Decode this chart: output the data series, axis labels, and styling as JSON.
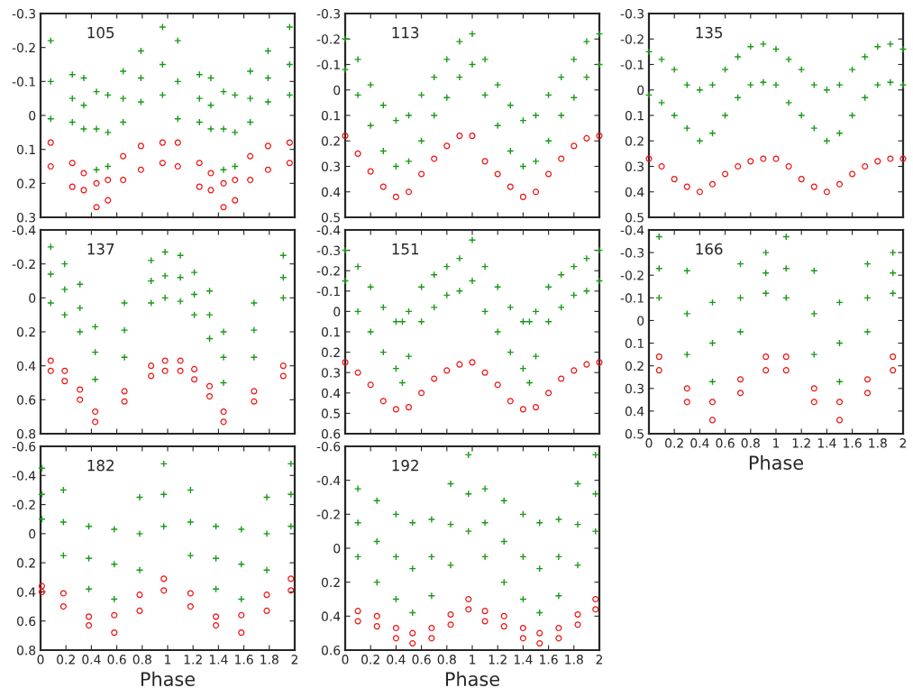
{
  "chart_data": [
    {
      "type": "scatter",
      "title": "105",
      "ylim": [
        0.3,
        -0.3
      ],
      "yticks": [
        -0.3,
        -0.2,
        -0.1,
        0,
        0.1,
        0.2,
        0.3
      ],
      "xlim": [
        0,
        2
      ],
      "xticks": [
        0,
        0.2,
        0.4,
        0.6,
        0.8,
        1,
        1.2,
        1.4,
        1.6,
        1.8,
        2
      ],
      "tick_labels": "y",
      "series": [
        {
          "color": "#1a9a1a",
          "marker": "cross",
          "x": [
            0.08,
            0.08,
            0.08,
            0.25,
            0.25,
            0.25,
            0.34,
            0.34,
            0.34,
            0.44,
            0.44,
            0.44,
            0.53,
            0.53,
            0.53,
            0.65,
            0.65,
            0.65,
            0.79,
            0.79,
            0.79,
            0.96,
            0.96,
            0.96,
            1.08,
            1.08,
            1.08,
            1.25,
            1.25,
            1.25,
            1.34,
            1.34,
            1.34,
            1.44,
            1.44,
            1.44,
            1.53,
            1.53,
            1.53,
            1.65,
            1.65,
            1.65,
            1.79,
            1.79,
            1.79,
            1.96,
            1.96,
            1.96
          ],
          "values": [
            -0.22,
            -0.1,
            0.01,
            -0.12,
            -0.05,
            0.02,
            -0.11,
            -0.03,
            0.04,
            -0.07,
            0.04,
            0.16,
            -0.06,
            0.05,
            0.15,
            -0.13,
            -0.05,
            0.02,
            -0.19,
            -0.11,
            -0.04,
            -0.26,
            -0.15,
            -0.06,
            -0.22,
            -0.1,
            0.01,
            -0.12,
            -0.05,
            0.02,
            -0.11,
            -0.03,
            0.04,
            -0.07,
            0.04,
            0.16,
            -0.06,
            0.05,
            0.15,
            -0.13,
            -0.05,
            0.02,
            -0.19,
            -0.11,
            -0.04,
            -0.26,
            -0.15,
            -0.06
          ]
        },
        {
          "color": "#ee1111",
          "marker": "circle",
          "x": [
            0.08,
            0.08,
            0.25,
            0.25,
            0.34,
            0.34,
            0.44,
            0.44,
            0.53,
            0.53,
            0.65,
            0.65,
            0.79,
            0.79,
            0.96,
            0.96,
            1.08,
            1.08,
            1.25,
            1.25,
            1.34,
            1.34,
            1.44,
            1.44,
            1.53,
            1.53,
            1.65,
            1.65,
            1.79,
            1.79,
            1.96,
            1.96
          ],
          "values": [
            0.08,
            0.15,
            0.14,
            0.21,
            0.17,
            0.22,
            0.2,
            0.27,
            0.19,
            0.25,
            0.12,
            0.19,
            0.09,
            0.16,
            0.08,
            0.14,
            0.08,
            0.15,
            0.14,
            0.21,
            0.17,
            0.22,
            0.2,
            0.27,
            0.19,
            0.25,
            0.12,
            0.19,
            0.09,
            0.16,
            0.08,
            0.14
          ]
        }
      ]
    },
    {
      "type": "scatter",
      "title": "113",
      "ylim": [
        0.5,
        -0.3
      ],
      "yticks": [
        -0.3,
        -0.2,
        -0.1,
        0,
        0.1,
        0.2,
        0.3,
        0.4,
        0.5
      ],
      "xlim": [
        0,
        2
      ],
      "xticks": [
        0,
        0.2,
        0.4,
        0.6,
        0.8,
        1,
        1.2,
        1.4,
        1.6,
        1.8,
        2
      ],
      "tick_labels": "y",
      "series": [
        {
          "color": "#1a9a1a",
          "marker": "cross",
          "x": [
            0,
            0,
            0.1,
            0.1,
            0.2,
            0.2,
            0.3,
            0.3,
            0.4,
            0.4,
            0.5,
            0.5,
            0.6,
            0.6,
            0.7,
            0.7,
            0.8,
            0.8,
            0.9,
            0.9,
            1,
            1,
            1.1,
            1.1,
            1.2,
            1.2,
            1.3,
            1.3,
            1.4,
            1.4,
            1.5,
            1.5,
            1.6,
            1.6,
            1.7,
            1.7,
            1.8,
            1.8,
            1.9,
            1.9,
            2,
            2
          ],
          "values": [
            -0.2,
            -0.08,
            -0.12,
            0.02,
            -0.02,
            0.14,
            0.06,
            0.24,
            0.12,
            0.3,
            0.1,
            0.28,
            0.02,
            0.2,
            -0.05,
            0.1,
            -0.12,
            0.03,
            -0.19,
            -0.05,
            -0.22,
            -0.1,
            -0.12,
            0.02,
            -0.02,
            0.14,
            0.06,
            0.24,
            0.12,
            0.3,
            0.1,
            0.28,
            0.02,
            0.2,
            -0.05,
            0.1,
            -0.12,
            0.03,
            -0.19,
            -0.05,
            -0.22,
            -0.1
          ]
        },
        {
          "color": "#ee1111",
          "marker": "circle",
          "x": [
            0,
            0.1,
            0.2,
            0.3,
            0.4,
            0.5,
            0.6,
            0.7,
            0.8,
            0.9,
            1,
            1.1,
            1.2,
            1.3,
            1.4,
            1.5,
            1.6,
            1.7,
            1.8,
            1.9,
            2
          ],
          "values": [
            0.18,
            0.25,
            0.32,
            0.38,
            0.42,
            0.4,
            0.33,
            0.27,
            0.22,
            0.18,
            0.18,
            0.28,
            0.33,
            0.38,
            0.42,
            0.4,
            0.33,
            0.27,
            0.22,
            0.19,
            0.18
          ]
        }
      ]
    },
    {
      "type": "scatter",
      "title": "135",
      "ylim": [
        0.5,
        -0.3
      ],
      "yticks": [
        -0.3,
        -0.2,
        -0.1,
        0,
        0.1,
        0.2,
        0.3,
        0.4,
        0.5
      ],
      "xlim": [
        0,
        2
      ],
      "xticks": [
        0,
        0.2,
        0.4,
        0.6,
        0.8,
        1,
        1.2,
        1.4,
        1.6,
        1.8,
        2
      ],
      "tick_labels": "y",
      "series": [
        {
          "color": "#1a9a1a",
          "marker": "cross",
          "x": [
            0,
            0,
            0.1,
            0.1,
            0.2,
            0.2,
            0.3,
            0.3,
            0.4,
            0.4,
            0.5,
            0.5,
            0.6,
            0.6,
            0.7,
            0.7,
            0.8,
            0.8,
            0.9,
            0.9,
            1,
            1,
            1.1,
            1.1,
            1.2,
            1.2,
            1.3,
            1.3,
            1.4,
            1.4,
            1.5,
            1.5,
            1.6,
            1.6,
            1.7,
            1.7,
            1.8,
            1.8,
            1.9,
            1.9,
            2,
            2
          ],
          "values": [
            -0.15,
            0.02,
            -0.12,
            0.05,
            -0.08,
            0.1,
            -0.02,
            0.15,
            0,
            0.2,
            -0.02,
            0.17,
            -0.08,
            0.1,
            -0.13,
            0.03,
            -0.17,
            -0.02,
            -0.18,
            -0.03,
            -0.16,
            -0.02,
            -0.12,
            0.05,
            -0.08,
            0.1,
            -0.02,
            0.15,
            0,
            0.2,
            -0.02,
            0.17,
            -0.08,
            0.1,
            -0.13,
            0.03,
            -0.17,
            -0.02,
            -0.18,
            -0.03,
            -0.16,
            -0.02
          ]
        },
        {
          "color": "#ee1111",
          "marker": "circle",
          "x": [
            0,
            0.1,
            0.2,
            0.3,
            0.4,
            0.5,
            0.6,
            0.7,
            0.8,
            0.9,
            1,
            1.1,
            1.2,
            1.3,
            1.4,
            1.5,
            1.6,
            1.7,
            1.8,
            1.9,
            2
          ],
          "values": [
            0.27,
            0.3,
            0.35,
            0.38,
            0.4,
            0.37,
            0.33,
            0.3,
            0.28,
            0.27,
            0.27,
            0.3,
            0.35,
            0.38,
            0.4,
            0.37,
            0.33,
            0.3,
            0.28,
            0.27,
            0.27
          ]
        }
      ]
    },
    {
      "type": "scatter",
      "title": "137",
      "ylim": [
        0.8,
        -0.4
      ],
      "yticks": [
        -0.4,
        -0.2,
        0,
        0.2,
        0.4,
        0.6,
        0.8
      ],
      "xlim": [
        0,
        2
      ],
      "xticks": [
        0,
        0.2,
        0.4,
        0.6,
        0.8,
        1,
        1.2,
        1.4,
        1.6,
        1.8,
        2
      ],
      "tick_labels": "y",
      "series": [
        {
          "color": "#1a9a1a",
          "marker": "cross",
          "x": [
            0.08,
            0.08,
            0.08,
            0.19,
            0.19,
            0.19,
            0.31,
            0.31,
            0.31,
            0.43,
            0.43,
            0.43,
            0.66,
            0.66,
            0.66,
            0.87,
            0.87,
            0.87,
            0.98,
            0.98,
            0.98,
            1.1,
            1.1,
            1.1,
            1.21,
            1.21,
            1.21,
            1.33,
            1.33,
            1.33,
            1.44,
            1.44,
            1.44,
            1.68,
            1.68,
            1.68,
            1.91,
            1.91,
            1.91
          ],
          "values": [
            -0.3,
            -0.14,
            0.03,
            -0.2,
            -0.05,
            0.1,
            -0.08,
            0.06,
            0.2,
            0.17,
            0.32,
            0.48,
            0.03,
            0.19,
            0.35,
            -0.22,
            -0.1,
            0.03,
            -0.27,
            -0.13,
            0,
            -0.25,
            -0.12,
            0.02,
            -0.15,
            -0.02,
            0.1,
            -0.04,
            0.1,
            0.24,
            0.2,
            0.35,
            0.5,
            0.03,
            0.19,
            0.35,
            -0.25,
            -0.12,
            0
          ]
        },
        {
          "color": "#ee1111",
          "marker": "circle",
          "x": [
            0.08,
            0.08,
            0.19,
            0.19,
            0.31,
            0.31,
            0.43,
            0.43,
            0.66,
            0.66,
            0.87,
            0.87,
            0.98,
            0.98,
            1.1,
            1.1,
            1.21,
            1.21,
            1.33,
            1.33,
            1.44,
            1.44,
            1.68,
            1.68,
            1.91,
            1.91
          ],
          "values": [
            0.37,
            0.43,
            0.43,
            0.49,
            0.54,
            0.6,
            0.67,
            0.73,
            0.55,
            0.61,
            0.4,
            0.46,
            0.37,
            0.43,
            0.37,
            0.43,
            0.42,
            0.48,
            0.52,
            0.58,
            0.67,
            0.73,
            0.55,
            0.61,
            0.4,
            0.46
          ]
        }
      ]
    },
    {
      "type": "scatter",
      "title": "151",
      "ylim": [
        0.6,
        -0.4
      ],
      "yticks": [
        -0.4,
        -0.3,
        -0.2,
        -0.1,
        0,
        0.1,
        0.2,
        0.3,
        0.4,
        0.5,
        0.6
      ],
      "xlim": [
        0,
        2
      ],
      "xticks": [
        0,
        0.2,
        0.4,
        0.6,
        0.8,
        1,
        1.2,
        1.4,
        1.6,
        1.8,
        2
      ],
      "tick_labels": "y",
      "series": [
        {
          "color": "#1a9a1a",
          "marker": "cross",
          "x": [
            0,
            0,
            0.1,
            0.1,
            0.2,
            0.2,
            0.3,
            0.3,
            0.4,
            0.4,
            0.45,
            0.45,
            0.5,
            0.5,
            0.6,
            0.6,
            0.7,
            0.7,
            0.8,
            0.8,
            0.9,
            0.9,
            1,
            1,
            1.1,
            1.1,
            1.2,
            1.2,
            1.3,
            1.3,
            1.4,
            1.4,
            1.45,
            1.45,
            1.5,
            1.5,
            1.6,
            1.6,
            1.7,
            1.7,
            1.8,
            1.8,
            1.9,
            1.9,
            2,
            2
          ],
          "values": [
            -0.3,
            -0.15,
            -0.22,
            0,
            -0.12,
            0.1,
            -0.02,
            0.2,
            0.05,
            0.28,
            0.05,
            0.35,
            0,
            0.22,
            -0.12,
            0.05,
            -0.18,
            -0.02,
            -0.22,
            -0.08,
            -0.26,
            -0.1,
            -0.35,
            -0.15,
            -0.22,
            0,
            -0.12,
            0.1,
            -0.02,
            0.2,
            0.05,
            0.28,
            0.05,
            0.35,
            0,
            0.22,
            -0.12,
            0.05,
            -0.18,
            -0.02,
            -0.22,
            -0.08,
            -0.26,
            -0.1,
            -0.3,
            -0.15
          ]
        },
        {
          "color": "#ee1111",
          "marker": "circle",
          "x": [
            0,
            0.1,
            0.2,
            0.3,
            0.4,
            0.5,
            0.6,
            0.7,
            0.8,
            0.9,
            1,
            1.1,
            1.2,
            1.3,
            1.4,
            1.5,
            1.6,
            1.7,
            1.8,
            1.9,
            2
          ],
          "values": [
            0.25,
            0.3,
            0.36,
            0.44,
            0.48,
            0.47,
            0.4,
            0.33,
            0.29,
            0.26,
            0.25,
            0.3,
            0.36,
            0.44,
            0.48,
            0.47,
            0.4,
            0.33,
            0.29,
            0.26,
            0.25
          ]
        }
      ]
    },
    {
      "type": "scatter",
      "title": "166",
      "xlabel": "Phase",
      "ylim": [
        0.5,
        -0.4
      ],
      "yticks": [
        -0.4,
        -0.3,
        -0.2,
        -0.1,
        0,
        0.1,
        0.2,
        0.3,
        0.4,
        0.5
      ],
      "xlim": [
        0,
        2
      ],
      "xticks": [
        0,
        0.2,
        0.4,
        0.6,
        0.8,
        1,
        1.2,
        1.4,
        1.6,
        1.8,
        2
      ],
      "series": [
        {
          "color": "#1a9a1a",
          "marker": "cross",
          "x": [
            0.08,
            0.08,
            0.08,
            0.3,
            0.3,
            0.3,
            0.5,
            0.5,
            0.5,
            0.72,
            0.72,
            0.72,
            0.92,
            0.92,
            0.92,
            1.08,
            1.08,
            1.08,
            1.3,
            1.3,
            1.3,
            1.5,
            1.5,
            1.5,
            1.72,
            1.72,
            1.72,
            1.92,
            1.92,
            1.92
          ],
          "values": [
            -0.37,
            -0.23,
            -0.1,
            -0.22,
            -0.03,
            0.15,
            -0.08,
            0.1,
            0.27,
            -0.25,
            -0.1,
            0.05,
            -0.3,
            -0.21,
            -0.12,
            -0.37,
            -0.23,
            -0.1,
            -0.22,
            -0.03,
            0.15,
            -0.08,
            0.1,
            0.27,
            -0.25,
            -0.1,
            0.05,
            -0.3,
            -0.21,
            -0.12
          ]
        },
        {
          "color": "#ee1111",
          "marker": "circle",
          "x": [
            0.08,
            0.08,
            0.3,
            0.3,
            0.5,
            0.5,
            0.72,
            0.72,
            0.92,
            0.92,
            1.08,
            1.08,
            1.3,
            1.3,
            1.5,
            1.5,
            1.72,
            1.72,
            1.92,
            1.92
          ],
          "values": [
            0.16,
            0.22,
            0.3,
            0.36,
            0.36,
            0.44,
            0.26,
            0.32,
            0.16,
            0.22,
            0.16,
            0.22,
            0.3,
            0.36,
            0.36,
            0.44,
            0.26,
            0.32,
            0.16,
            0.22
          ]
        }
      ]
    },
    {
      "type": "scatter",
      "title": "182",
      "xlabel": "Phase",
      "ylim": [
        0.8,
        -0.6
      ],
      "yticks": [
        -0.6,
        -0.4,
        -0.2,
        0,
        0.2,
        0.4,
        0.6,
        0.8
      ],
      "xlim": [
        0,
        2
      ],
      "xticks": [
        0,
        0.2,
        0.4,
        0.6,
        0.8,
        1,
        1.2,
        1.4,
        1.6,
        1.8,
        2
      ],
      "series": [
        {
          "color": "#1a9a1a",
          "marker": "cross",
          "x": [
            0.01,
            0.01,
            0.01,
            0.18,
            0.18,
            0.18,
            0.38,
            0.38,
            0.38,
            0.58,
            0.58,
            0.58,
            0.78,
            0.78,
            0.78,
            0.97,
            0.97,
            0.97,
            1.18,
            1.18,
            1.18,
            1.38,
            1.38,
            1.38,
            1.58,
            1.58,
            1.58,
            1.78,
            1.78,
            1.78,
            1.97,
            1.97,
            1.97
          ],
          "values": [
            -0.45,
            -0.27,
            -0.1,
            -0.3,
            -0.08,
            0.15,
            -0.05,
            0.17,
            0.38,
            -0.03,
            0.21,
            0.45,
            -0.25,
            0,
            0.25,
            -0.48,
            -0.27,
            -0.05,
            -0.3,
            -0.08,
            0.15,
            -0.05,
            0.17,
            0.38,
            -0.03,
            0.21,
            0.45,
            -0.25,
            0,
            0.25,
            -0.48,
            -0.27,
            -0.05
          ]
        },
        {
          "color": "#ee1111",
          "marker": "circle",
          "x": [
            0.01,
            0.01,
            0.18,
            0.18,
            0.38,
            0.38,
            0.58,
            0.58,
            0.78,
            0.78,
            0.97,
            0.97,
            1.18,
            1.18,
            1.38,
            1.38,
            1.58,
            1.58,
            1.78,
            1.78,
            1.97,
            1.97
          ],
          "values": [
            0.36,
            0.4,
            0.41,
            0.5,
            0.57,
            0.63,
            0.56,
            0.68,
            0.42,
            0.53,
            0.31,
            0.39,
            0.41,
            0.5,
            0.57,
            0.63,
            0.56,
            0.68,
            0.42,
            0.53,
            0.31,
            0.39
          ]
        }
      ]
    },
    {
      "type": "scatter",
      "title": "192",
      "xlabel": "Phase",
      "ylim": [
        0.6,
        -0.6
      ],
      "yticks": [
        -0.6,
        -0.4,
        -0.2,
        0,
        0.2,
        0.4,
        0.6
      ],
      "xlim": [
        0,
        2
      ],
      "xticks": [
        0,
        0.2,
        0.4,
        0.6,
        0.8,
        1,
        1.2,
        1.4,
        1.6,
        1.8,
        2
      ],
      "series": [
        {
          "color": "#1a9a1a",
          "marker": "cross",
          "x": [
            0.1,
            0.1,
            0.1,
            0.25,
            0.25,
            0.25,
            0.4,
            0.4,
            0.4,
            0.53,
            0.53,
            0.53,
            0.68,
            0.68,
            0.68,
            0.83,
            0.83,
            0.83,
            0.97,
            0.97,
            0.97,
            1.1,
            1.1,
            1.1,
            1.25,
            1.25,
            1.25,
            1.4,
            1.4,
            1.4,
            1.53,
            1.53,
            1.53,
            1.68,
            1.68,
            1.68,
            1.83,
            1.83,
            1.83,
            1.97,
            1.97,
            1.97
          ],
          "values": [
            -0.35,
            -0.15,
            0.05,
            -0.28,
            -0.04,
            0.2,
            -0.2,
            0.05,
            0.3,
            -0.15,
            0.12,
            0.38,
            -0.17,
            0.05,
            0.28,
            -0.38,
            -0.14,
            0.1,
            -0.55,
            -0.32,
            -0.1,
            -0.35,
            -0.15,
            0.05,
            -0.28,
            -0.04,
            0.2,
            -0.2,
            0.05,
            0.3,
            -0.15,
            0.12,
            0.38,
            -0.17,
            0.05,
            0.28,
            -0.38,
            -0.14,
            0.1,
            -0.55,
            -0.32,
            -0.1
          ]
        },
        {
          "color": "#ee1111",
          "marker": "circle",
          "x": [
            0.1,
            0.1,
            0.25,
            0.25,
            0.4,
            0.4,
            0.53,
            0.53,
            0.68,
            0.68,
            0.83,
            0.83,
            0.97,
            0.97,
            1.1,
            1.1,
            1.25,
            1.25,
            1.4,
            1.4,
            1.53,
            1.53,
            1.68,
            1.68,
            1.83,
            1.83,
            1.97,
            1.97
          ],
          "values": [
            0.37,
            0.43,
            0.4,
            0.46,
            0.47,
            0.53,
            0.5,
            0.56,
            0.47,
            0.53,
            0.39,
            0.45,
            0.3,
            0.36,
            0.37,
            0.43,
            0.4,
            0.46,
            0.47,
            0.53,
            0.5,
            0.56,
            0.47,
            0.53,
            0.39,
            0.45,
            0.3,
            0.36
          ]
        }
      ]
    }
  ]
}
